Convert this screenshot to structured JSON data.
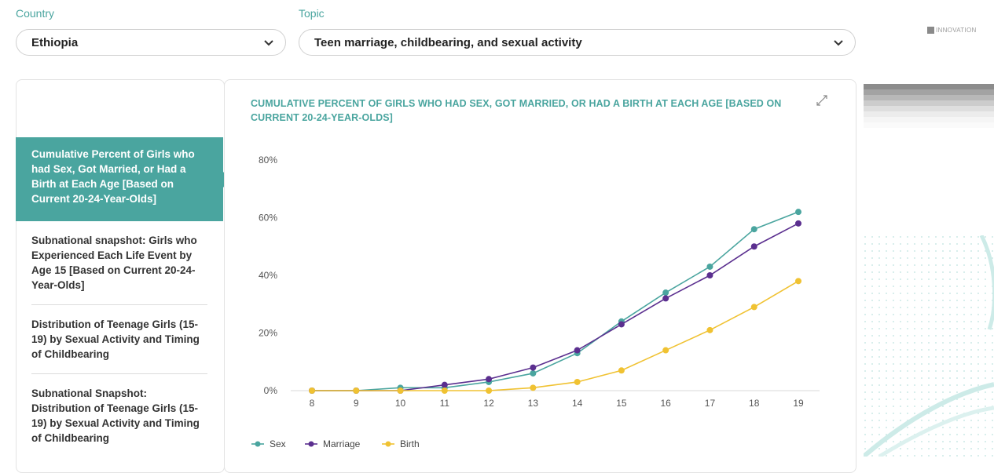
{
  "filters": {
    "country": {
      "label": "Country",
      "value": "Ethiopia"
    },
    "topic": {
      "label": "Topic",
      "value": "Teen marriage, childbearing, and sexual activity"
    }
  },
  "logo": {
    "text": "INNOVATION"
  },
  "sidebar": {
    "items": [
      {
        "label": "Cumulative Percent of Girls who had Sex, Got Married, or Had a Birth at Each Age [Based on Current 20-24-Year-Olds]",
        "active": true
      },
      {
        "label": "Subnational snapshot: Girls who Experienced Each Life Event by Age 15 [Based on Current 20-24-Year-Olds]",
        "active": false
      },
      {
        "label": "Distribution of Teenage Girls (15-19) by Sexual Activity and Timing of Childbearing",
        "active": false
      },
      {
        "label": "Subnational Snapshot: Distribution of Teenage Girls (15-19) by Sexual Activity and Timing of Childbearing",
        "active": false
      }
    ]
  },
  "colors": {
    "accent": "#4aa59f",
    "sex": "#4aa59f",
    "marriage": "#5b2f8f",
    "birth": "#f0c232"
  },
  "chart_data": {
    "type": "line",
    "title": "CUMULATIVE PERCENT OF GIRLS WHO HAD SEX, GOT MARRIED, OR HAD A BIRTH AT EACH AGE [BASED ON CURRENT 20-24-YEAR-OLDS]",
    "x": [
      8,
      9,
      10,
      11,
      12,
      13,
      14,
      15,
      16,
      17,
      18,
      19
    ],
    "yticks": [
      "0%",
      "20%",
      "40%",
      "60%",
      "80%"
    ],
    "ytick_values": [
      0,
      20,
      40,
      60,
      80
    ],
    "ylim": [
      0,
      80
    ],
    "grid": false,
    "legend": "bottom-left",
    "series": [
      {
        "name": "Sex",
        "color": "#4aa59f",
        "values": [
          0,
          0,
          1,
          1,
          3,
          6,
          13,
          24,
          34,
          43,
          56,
          62
        ]
      },
      {
        "name": "Marriage",
        "color": "#5b2f8f",
        "values": [
          0,
          0,
          0,
          2,
          4,
          8,
          14,
          23,
          32,
          40,
          50,
          58
        ]
      },
      {
        "name": "Birth",
        "color": "#f0c232",
        "values": [
          0,
          0,
          0,
          0,
          0,
          1,
          3,
          7,
          14,
          21,
          29,
          38
        ]
      }
    ]
  }
}
